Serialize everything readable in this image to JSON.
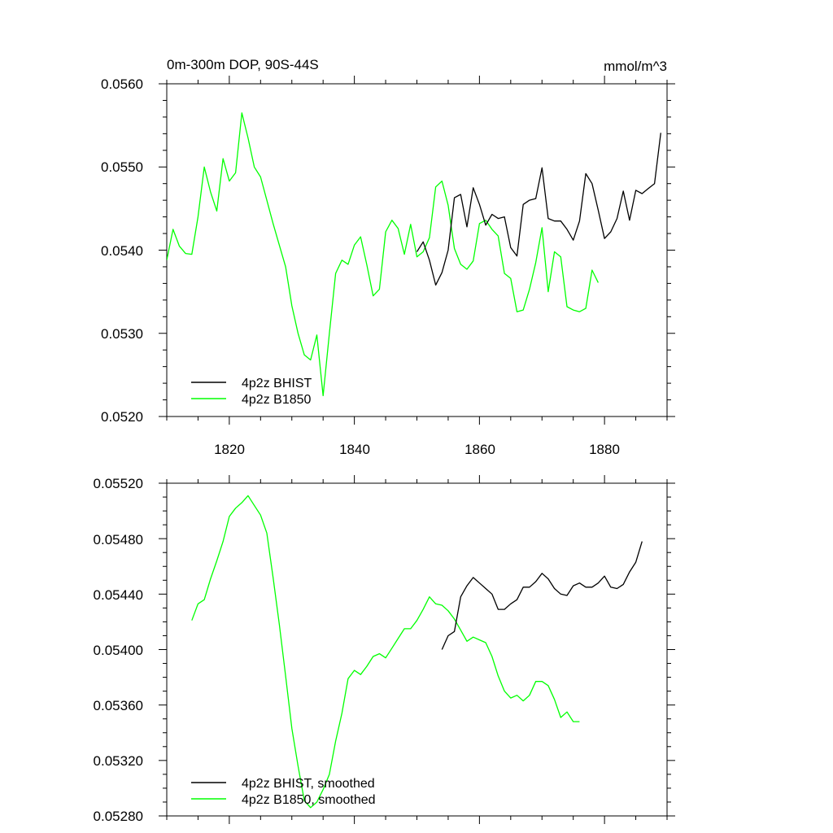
{
  "colors": {
    "bhist": "#000000",
    "b1850": "#00ff00",
    "axis": "#000000"
  },
  "chart_data": [
    {
      "type": "line",
      "title": "0m-300m DOP, 90S-44S",
      "units": "mmol/m^3",
      "xlim": [
        1810,
        1890
      ],
      "ylim": [
        0.052,
        0.056
      ],
      "xticks": [
        1820,
        1840,
        1860,
        1880
      ],
      "xtick_labels": [
        "1820",
        "1840",
        "1860",
        "1880"
      ],
      "yticks": [
        0.052,
        0.053,
        0.054,
        0.055,
        0.056
      ],
      "ytick_labels": [
        "0.0520",
        "0.0530",
        "0.0540",
        "0.0550",
        "0.0560"
      ],
      "legend_position": "bottom-left",
      "series": [
        {
          "name": "4p2z BHIST",
          "color_key": "bhist",
          "x": [
            1850,
            1851,
            1852,
            1853,
            1854,
            1855,
            1856,
            1857,
            1858,
            1859,
            1860,
            1861,
            1862,
            1863,
            1864,
            1865,
            1866,
            1867,
            1868,
            1869,
            1870,
            1871,
            1872,
            1873,
            1874,
            1875,
            1876,
            1877,
            1878,
            1879,
            1880,
            1881,
            1882,
            1883,
            1884,
            1885,
            1886,
            1887,
            1888,
            1889
          ],
          "values": [
            0.05398,
            0.0541,
            0.05388,
            0.05358,
            0.05373,
            0.054,
            0.05463,
            0.05467,
            0.05428,
            0.05475,
            0.05455,
            0.0543,
            0.05443,
            0.05438,
            0.0544,
            0.05403,
            0.05393,
            0.05455,
            0.0546,
            0.05462,
            0.05499,
            0.05438,
            0.05435,
            0.05435,
            0.05425,
            0.05412,
            0.05435,
            0.05492,
            0.0548,
            0.05448,
            0.05414,
            0.05422,
            0.05438,
            0.05471,
            0.05436,
            0.05472,
            0.05468,
            0.05474,
            0.0548,
            0.05541
          ]
        },
        {
          "name": "4p2z B1850",
          "color_key": "b1850",
          "x": [
            1810,
            1811,
            1812,
            1813,
            1814,
            1815,
            1816,
            1817,
            1818,
            1819,
            1820,
            1821,
            1822,
            1823,
            1824,
            1825,
            1826,
            1827,
            1828,
            1829,
            1830,
            1831,
            1832,
            1833,
            1834,
            1835,
            1836,
            1837,
            1838,
            1839,
            1840,
            1841,
            1842,
            1843,
            1844,
            1845,
            1846,
            1847,
            1848,
            1849,
            1850,
            1851,
            1852,
            1853,
            1854,
            1855,
            1856,
            1857,
            1858,
            1859,
            1860,
            1861,
            1862,
            1863,
            1864,
            1865,
            1866,
            1867,
            1868,
            1869,
            1870,
            1871,
            1872,
            1873,
            1874,
            1875,
            1876,
            1877,
            1878,
            1879
          ],
          "values": [
            0.05388,
            0.05425,
            0.05405,
            0.05396,
            0.05395,
            0.0544,
            0.055,
            0.0547,
            0.05447,
            0.0551,
            0.05483,
            0.05493,
            0.05565,
            0.05535,
            0.055,
            0.05488,
            0.0546,
            0.05432,
            0.05406,
            0.0538,
            0.05333,
            0.053,
            0.05274,
            0.05268,
            0.05298,
            0.05225,
            0.053,
            0.05372,
            0.05388,
            0.05383,
            0.05406,
            0.05416,
            0.05382,
            0.05345,
            0.05353,
            0.05422,
            0.05436,
            0.05426,
            0.05395,
            0.05431,
            0.05392,
            0.05398,
            0.05415,
            0.05476,
            0.05483,
            0.05454,
            0.05402,
            0.05383,
            0.05377,
            0.05387,
            0.05432,
            0.05436,
            0.05425,
            0.05417,
            0.05372,
            0.05366,
            0.05326,
            0.05328,
            0.05353,
            0.05385,
            0.05427,
            0.0535,
            0.05398,
            0.05392,
            0.05332,
            0.05328,
            0.05326,
            0.0533,
            0.05376,
            0.05361
          ]
        }
      ]
    },
    {
      "type": "line",
      "title": "",
      "xlim": [
        1810,
        1890
      ],
      "ylim": [
        0.0528,
        0.0552
      ],
      "xticks": [
        1820,
        1840,
        1860,
        1880
      ],
      "yticks": [
        0.0528,
        0.0532,
        0.0536,
        0.054,
        0.0544,
        0.0548,
        0.0552
      ],
      "ytick_labels": [
        "0.05280",
        "0.05320",
        "0.05360",
        "0.05400",
        "0.05440",
        "0.05480",
        "0.05520"
      ],
      "legend_position": "bottom-left",
      "series": [
        {
          "name": "4p2z BHIST, smoothed",
          "color_key": "bhist",
          "x": [
            1854,
            1855,
            1856,
            1857,
            1858,
            1859,
            1860,
            1861,
            1862,
            1863,
            1864,
            1865,
            1866,
            1867,
            1868,
            1869,
            1870,
            1871,
            1872,
            1873,
            1874,
            1875,
            1876,
            1877,
            1878,
            1879,
            1880,
            1881,
            1882,
            1883,
            1884,
            1885,
            1886
          ],
          "values": [
            0.054,
            0.0541,
            0.05413,
            0.05438,
            0.05446,
            0.05452,
            0.05448,
            0.05444,
            0.0544,
            0.05429,
            0.05429,
            0.05433,
            0.05436,
            0.05445,
            0.05445,
            0.05449,
            0.05455,
            0.05451,
            0.05444,
            0.0544,
            0.05439,
            0.05446,
            0.05448,
            0.05445,
            0.05445,
            0.05448,
            0.05453,
            0.05445,
            0.05444,
            0.05447,
            0.05456,
            0.05463,
            0.05478
          ]
        },
        {
          "name": "4p2z B1850, smoothed",
          "color_key": "b1850",
          "x": [
            1814,
            1815,
            1816,
            1817,
            1818,
            1819,
            1820,
            1821,
            1822,
            1823,
            1824,
            1825,
            1826,
            1827,
            1828,
            1829,
            1830,
            1831,
            1832,
            1833,
            1834,
            1835,
            1836,
            1837,
            1838,
            1839,
            1840,
            1841,
            1842,
            1843,
            1844,
            1845,
            1846,
            1847,
            1848,
            1849,
            1850,
            1851,
            1852,
            1853,
            1854,
            1855,
            1856,
            1857,
            1858,
            1859,
            1860,
            1861,
            1862,
            1863,
            1864,
            1865,
            1866,
            1867,
            1868,
            1869,
            1870,
            1871,
            1872,
            1873,
            1874,
            1875,
            1876
          ],
          "values": [
            0.05421,
            0.05433,
            0.05436,
            0.05451,
            0.05464,
            0.05478,
            0.05496,
            0.05502,
            0.05506,
            0.05511,
            0.05504,
            0.05497,
            0.05484,
            0.05452,
            0.05418,
            0.05381,
            0.05343,
            0.05316,
            0.05291,
            0.05286,
            0.0529,
            0.05299,
            0.0531,
            0.05334,
            0.05354,
            0.05379,
            0.05385,
            0.05382,
            0.05388,
            0.05395,
            0.05397,
            0.05394,
            0.05401,
            0.05408,
            0.05415,
            0.05415,
            0.05421,
            0.05429,
            0.05438,
            0.05433,
            0.05432,
            0.05428,
            0.05422,
            0.05414,
            0.05406,
            0.05409,
            0.05407,
            0.05405,
            0.05395,
            0.05381,
            0.0537,
            0.05365,
            0.05367,
            0.05363,
            0.05367,
            0.05377,
            0.05377,
            0.05374,
            0.05364,
            0.05351,
            0.05355,
            0.05348,
            0.05348
          ]
        }
      ]
    }
  ]
}
